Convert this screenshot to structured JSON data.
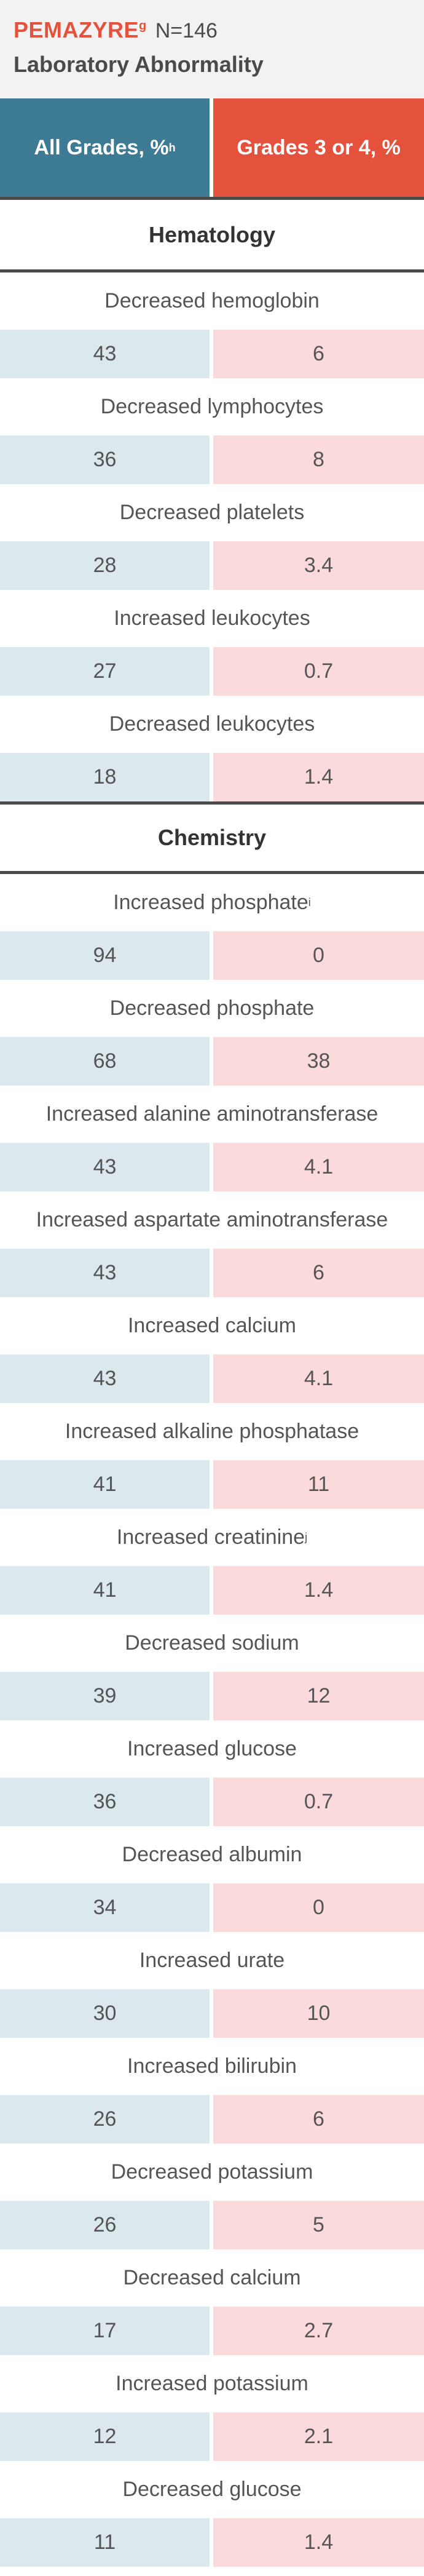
{
  "header": {
    "brand": "PEMAZYRE",
    "brand_sup": "g",
    "n_label": "N=146",
    "subtitle": "Laboratory Abnormality"
  },
  "columns": {
    "all_grades": "All Grades, %",
    "all_grades_sup": "h",
    "grades_3_4": "Grades 3 or 4, %"
  },
  "colors": {
    "brand_red": "#e4513d",
    "all_grades_blue": "#3d7a94",
    "all_grades_cell": "#dbe8ed",
    "grades_cell": "#fadada"
  },
  "sections": [
    {
      "title": "Hematology",
      "rows": [
        {
          "label": "Decreased hemoglobin",
          "sup": "",
          "all": "43",
          "g34": "6"
        },
        {
          "label": "Decreased lymphocytes",
          "sup": "",
          "all": "36",
          "g34": "8"
        },
        {
          "label": "Decreased platelets",
          "sup": "",
          "all": "28",
          "g34": "3.4"
        },
        {
          "label": "Increased leukocytes",
          "sup": "",
          "all": "27",
          "g34": "0.7"
        },
        {
          "label": "Decreased leukocytes",
          "sup": "",
          "all": "18",
          "g34": "1.4"
        }
      ]
    },
    {
      "title": "Chemistry",
      "rows": [
        {
          "label": "Increased phosphate",
          "sup": "i",
          "all": "94",
          "g34": "0"
        },
        {
          "label": "Decreased phosphate",
          "sup": "",
          "all": "68",
          "g34": "38"
        },
        {
          "label": "Increased alanine aminotransferase",
          "sup": "",
          "all": "43",
          "g34": "4.1"
        },
        {
          "label": "Increased aspartate aminotransferase",
          "sup": "",
          "all": "43",
          "g34": "6"
        },
        {
          "label": "Increased calcium",
          "sup": "",
          "all": "43",
          "g34": "4.1"
        },
        {
          "label": "Increased alkaline phosphatase",
          "sup": "",
          "all": "41",
          "g34": "11"
        },
        {
          "label": "Increased creatinine",
          "sup": "j",
          "all": "41",
          "g34": "1.4"
        },
        {
          "label": "Decreased sodium",
          "sup": "",
          "all": "39",
          "g34": "12"
        },
        {
          "label": "Increased glucose",
          "sup": "",
          "all": "36",
          "g34": "0.7"
        },
        {
          "label": "Decreased albumin",
          "sup": "",
          "all": "34",
          "g34": "0"
        },
        {
          "label": "Increased urate",
          "sup": "",
          "all": "30",
          "g34": "10"
        },
        {
          "label": "Increased bilirubin",
          "sup": "",
          "all": "26",
          "g34": "6"
        },
        {
          "label": "Decreased potassium",
          "sup": "",
          "all": "26",
          "g34": "5"
        },
        {
          "label": "Decreased calcium",
          "sup": "",
          "all": "17",
          "g34": "2.7"
        },
        {
          "label": "Increased potassium",
          "sup": "",
          "all": "12",
          "g34": "2.1"
        },
        {
          "label": "Decreased glucose",
          "sup": "",
          "all": "11",
          "g34": "1.4"
        }
      ]
    }
  ]
}
